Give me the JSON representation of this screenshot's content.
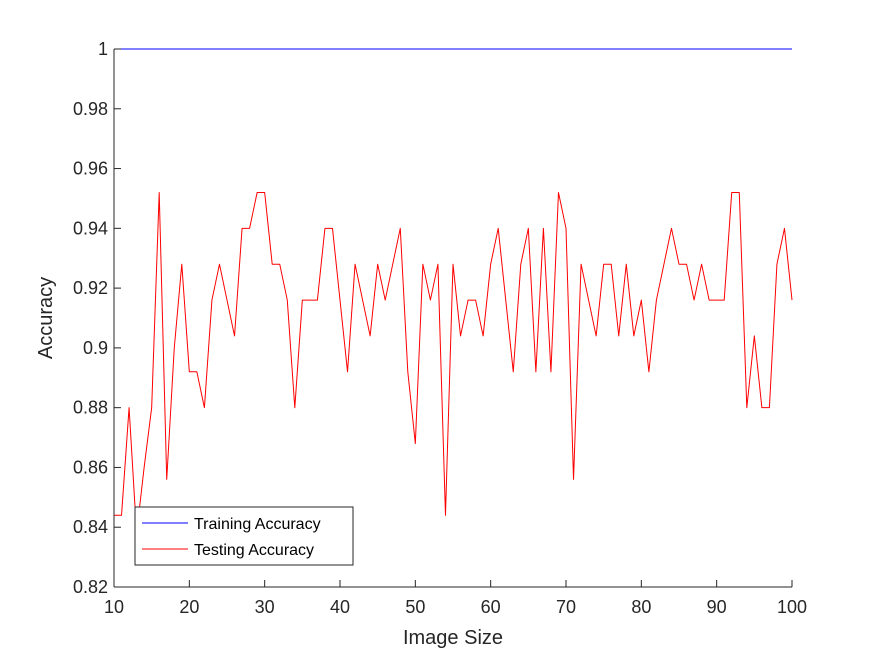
{
  "chart_data": {
    "type": "line",
    "title": "",
    "xlabel": "Image Size",
    "ylabel": "Accuracy",
    "xlim": [
      10,
      100
    ],
    "ylim": [
      0.82,
      1.0
    ],
    "xticks": [
      10,
      20,
      30,
      40,
      50,
      60,
      70,
      80,
      90,
      100
    ],
    "xtick_labels": [
      "10",
      "20",
      "30",
      "40",
      "50",
      "60",
      "70",
      "80",
      "90",
      "100"
    ],
    "yticks": [
      0.82,
      0.84,
      0.86,
      0.88,
      0.9,
      0.92,
      0.94,
      0.96,
      0.98,
      1.0
    ],
    "ytick_labels": [
      "0.82",
      "0.84",
      "0.86",
      "0.88",
      "0.9",
      "0.92",
      "0.94",
      "0.96",
      "0.98",
      "1"
    ],
    "grid": false,
    "legend_position": "bottom-left",
    "x": [
      10,
      11,
      12,
      13,
      14,
      15,
      16,
      17,
      18,
      19,
      20,
      21,
      22,
      23,
      24,
      25,
      26,
      27,
      28,
      29,
      30,
      31,
      32,
      33,
      34,
      35,
      36,
      37,
      38,
      39,
      40,
      41,
      42,
      43,
      44,
      45,
      46,
      47,
      48,
      49,
      50,
      51,
      52,
      53,
      54,
      55,
      56,
      57,
      58,
      59,
      60,
      61,
      62,
      63,
      64,
      65,
      66,
      67,
      68,
      69,
      70,
      71,
      72,
      73,
      74,
      75,
      76,
      77,
      78,
      79,
      80,
      81,
      82,
      83,
      84,
      85,
      86,
      87,
      88,
      89,
      90,
      91,
      92,
      93,
      94,
      95,
      96,
      97,
      98,
      99,
      100
    ],
    "series": [
      {
        "name": "Training Accuracy",
        "color": "#0000ff",
        "values": [
          1,
          1,
          1,
          1,
          1,
          1,
          1,
          1,
          1,
          1,
          1,
          1,
          1,
          1,
          1,
          1,
          1,
          1,
          1,
          1,
          1,
          1,
          1,
          1,
          1,
          1,
          1,
          1,
          1,
          1,
          1,
          1,
          1,
          1,
          1,
          1,
          1,
          1,
          1,
          1,
          1,
          1,
          1,
          1,
          1,
          1,
          1,
          1,
          1,
          1,
          1,
          1,
          1,
          1,
          1,
          1,
          1,
          1,
          1,
          1,
          1,
          1,
          1,
          1,
          1,
          1,
          1,
          1,
          1,
          1,
          1,
          1,
          1,
          1,
          1,
          1,
          1,
          1,
          1,
          1,
          1,
          1,
          1,
          1,
          1,
          1,
          1,
          1,
          1,
          1,
          1
        ]
      },
      {
        "name": "Testing Accuracy",
        "color": "#ff0000",
        "values": [
          0.844,
          0.844,
          0.88,
          0.838,
          0.86,
          0.88,
          0.952,
          0.856,
          0.9,
          0.928,
          0.892,
          0.892,
          0.88,
          0.916,
          0.928,
          0.916,
          0.904,
          0.94,
          0.94,
          0.952,
          0.952,
          0.928,
          0.928,
          0.916,
          0.88,
          0.916,
          0.916,
          0.916,
          0.94,
          0.94,
          0.916,
          0.892,
          0.928,
          0.916,
          0.904,
          0.928,
          0.916,
          0.928,
          0.94,
          0.892,
          0.868,
          0.928,
          0.916,
          0.928,
          0.844,
          0.928,
          0.904,
          0.916,
          0.916,
          0.904,
          0.928,
          0.94,
          0.916,
          0.892,
          0.928,
          0.94,
          0.892,
          0.94,
          0.892,
          0.952,
          0.94,
          0.856,
          0.928,
          0.916,
          0.904,
          0.928,
          0.928,
          0.904,
          0.928,
          0.904,
          0.916,
          0.892,
          0.916,
          0.928,
          0.94,
          0.928,
          0.928,
          0.916,
          0.928,
          0.916,
          0.916,
          0.916,
          0.952,
          0.952,
          0.88,
          0.904,
          0.88,
          0.88,
          0.928,
          0.94,
          0.916
        ]
      }
    ]
  }
}
